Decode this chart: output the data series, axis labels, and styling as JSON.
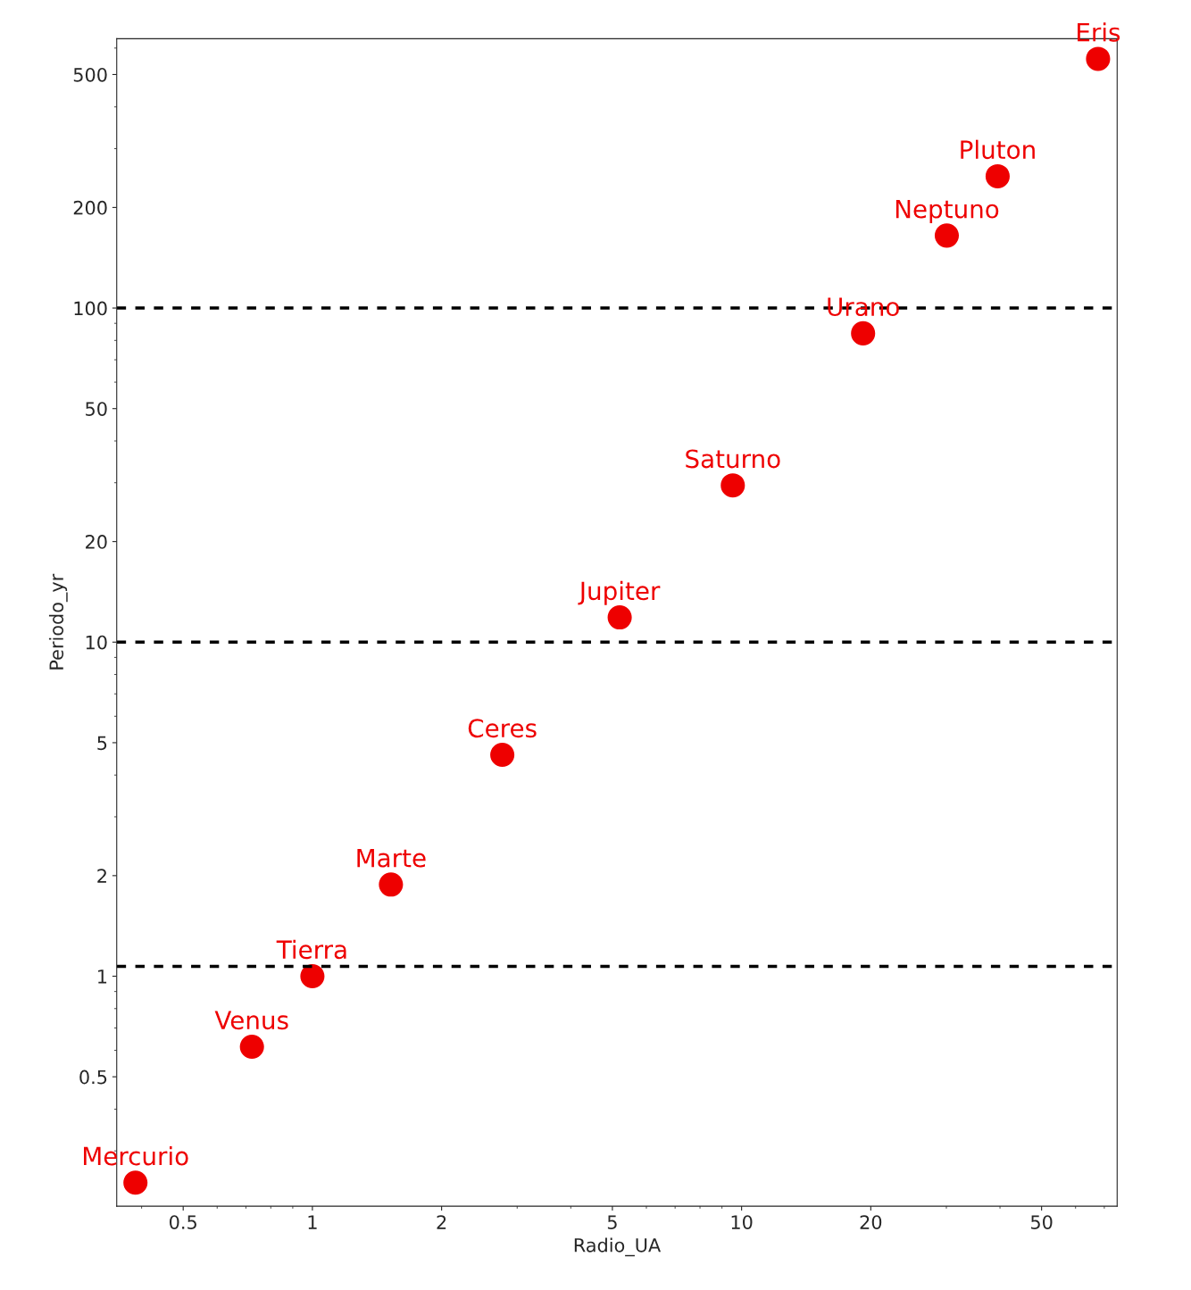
{
  "chart_data": {
    "type": "scatter",
    "xlabel": "Radio_UA",
    "ylabel": "Periodo_yr",
    "log": "xy",
    "grid": false,
    "legend": false,
    "marker": "circle",
    "x": [
      0.387,
      0.723,
      1.0,
      1.524,
      2.77,
      5.2,
      9.54,
      19.19,
      30.07,
      39.5,
      67.7
    ],
    "series": [
      {
        "color": "#ee0000",
        "values": [
          0.241,
          0.615,
          1.0,
          1.881,
          4.6,
          11.86,
          29.46,
          84,
          164.8,
          248,
          557
        ]
      }
    ],
    "annotations": [
      {
        "text": "Mercurio",
        "x": 0.387,
        "y": 0.241
      },
      {
        "text": "Venus",
        "x": 0.723,
        "y": 0.615
      },
      {
        "text": "Tierra",
        "x": 1.0,
        "y": 1.0
      },
      {
        "text": "Marte",
        "x": 1.524,
        "y": 1.881
      },
      {
        "text": "Ceres",
        "x": 2.77,
        "y": 4.6
      },
      {
        "text": "Jupiter",
        "x": 5.2,
        "y": 11.86
      },
      {
        "text": "Saturno",
        "x": 9.54,
        "y": 29.46
      },
      {
        "text": "Urano",
        "x": 19.19,
        "y": 84
      },
      {
        "text": "Neptuno",
        "x": 30.07,
        "y": 164.8
      },
      {
        "text": "Pluton",
        "x": 39.5,
        "y": 248
      },
      {
        "text": "Eris",
        "x": 67.7,
        "y": 557
      }
    ],
    "ref_lines": [
      {
        "axis": "y",
        "value": 100,
        "color": "#000000",
        "line_style": "dashed"
      },
      {
        "axis": "y",
        "value": 10,
        "color": "#000000",
        "line_style": "dashed"
      },
      {
        "axis": "y",
        "value": 1.07,
        "color": "#000000",
        "line_style": "dashed"
      }
    ],
    "xlim": [
      0.35,
      75
    ],
    "ylim": [
      0.205,
      640
    ],
    "xticks": [
      0.5,
      1,
      2,
      5,
      10,
      20,
      50
    ],
    "yticks": [
      0.5,
      1,
      2,
      5,
      10,
      20,
      50,
      100,
      200,
      500
    ]
  }
}
